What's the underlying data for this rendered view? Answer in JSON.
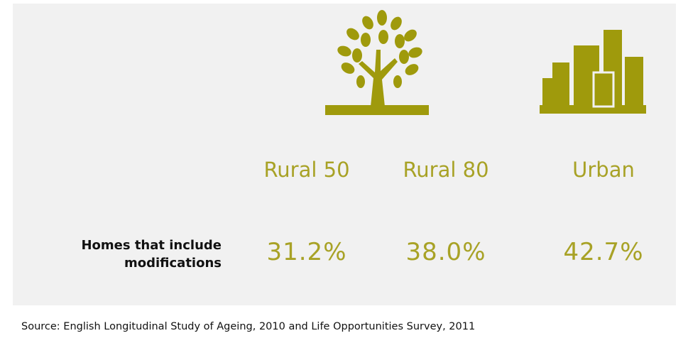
{
  "table": {
    "columns": [
      "Rural 50",
      "Rural 80",
      "Urban"
    ],
    "rows": [
      {
        "label": [
          "Homes that include",
          "modifications"
        ],
        "values": [
          "31.2%",
          "38.0%",
          "42.7%"
        ]
      }
    ]
  },
  "source": "Source: English Longitudinal Study of Ageing, 2010 and Life Opportunities Survey, 2011"
}
